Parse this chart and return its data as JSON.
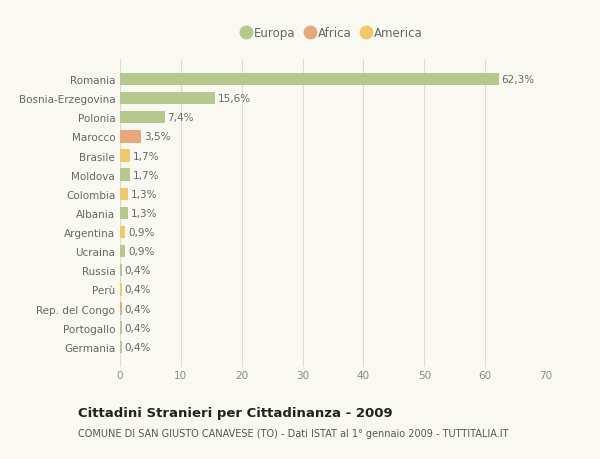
{
  "countries": [
    "Romania",
    "Bosnia-Erzegovina",
    "Polonia",
    "Marocco",
    "Brasile",
    "Moldova",
    "Colombia",
    "Albania",
    "Argentina",
    "Ucraina",
    "Russia",
    "Perù",
    "Rep. del Congo",
    "Portogallo",
    "Germania"
  ],
  "values": [
    62.3,
    15.6,
    7.4,
    3.5,
    1.7,
    1.7,
    1.3,
    1.3,
    0.9,
    0.9,
    0.4,
    0.4,
    0.4,
    0.4,
    0.4
  ],
  "labels": [
    "62,3%",
    "15,6%",
    "7,4%",
    "3,5%",
    "1,7%",
    "1,7%",
    "1,3%",
    "1,3%",
    "0,9%",
    "0,9%",
    "0,4%",
    "0,4%",
    "0,4%",
    "0,4%",
    "0,4%"
  ],
  "continents": [
    "Europa",
    "Europa",
    "Europa",
    "Africa",
    "America",
    "Europa",
    "America",
    "Europa",
    "America",
    "Europa",
    "Europa",
    "America",
    "Africa",
    "Europa",
    "Europa"
  ],
  "continent_colors": {
    "Europa": "#b5c98e",
    "Africa": "#e8a87c",
    "America": "#f0c86e"
  },
  "legend_items": [
    {
      "label": "Europa",
      "color": "#b5c98e"
    },
    {
      "label": "Africa",
      "color": "#e8a87c"
    },
    {
      "label": "America",
      "color": "#f0c86e"
    }
  ],
  "xlim": [
    0,
    70
  ],
  "xticks": [
    0,
    10,
    20,
    30,
    40,
    50,
    60,
    70
  ],
  "title": "Cittadini Stranieri per Cittadinanza - 2009",
  "subtitle": "COMUNE DI SAN GIUSTO CANAVESE (TO) - Dati ISTAT al 1° gennaio 2009 - TUTTITALIA.IT",
  "bg_color": "#f9f9f2",
  "grid_color": "#ddddcc",
  "bar_height": 0.65,
  "label_fontsize": 7.5,
  "tick_fontsize": 7.5,
  "title_fontsize": 9.5,
  "subtitle_fontsize": 7.0,
  "legend_fontsize": 8.5
}
